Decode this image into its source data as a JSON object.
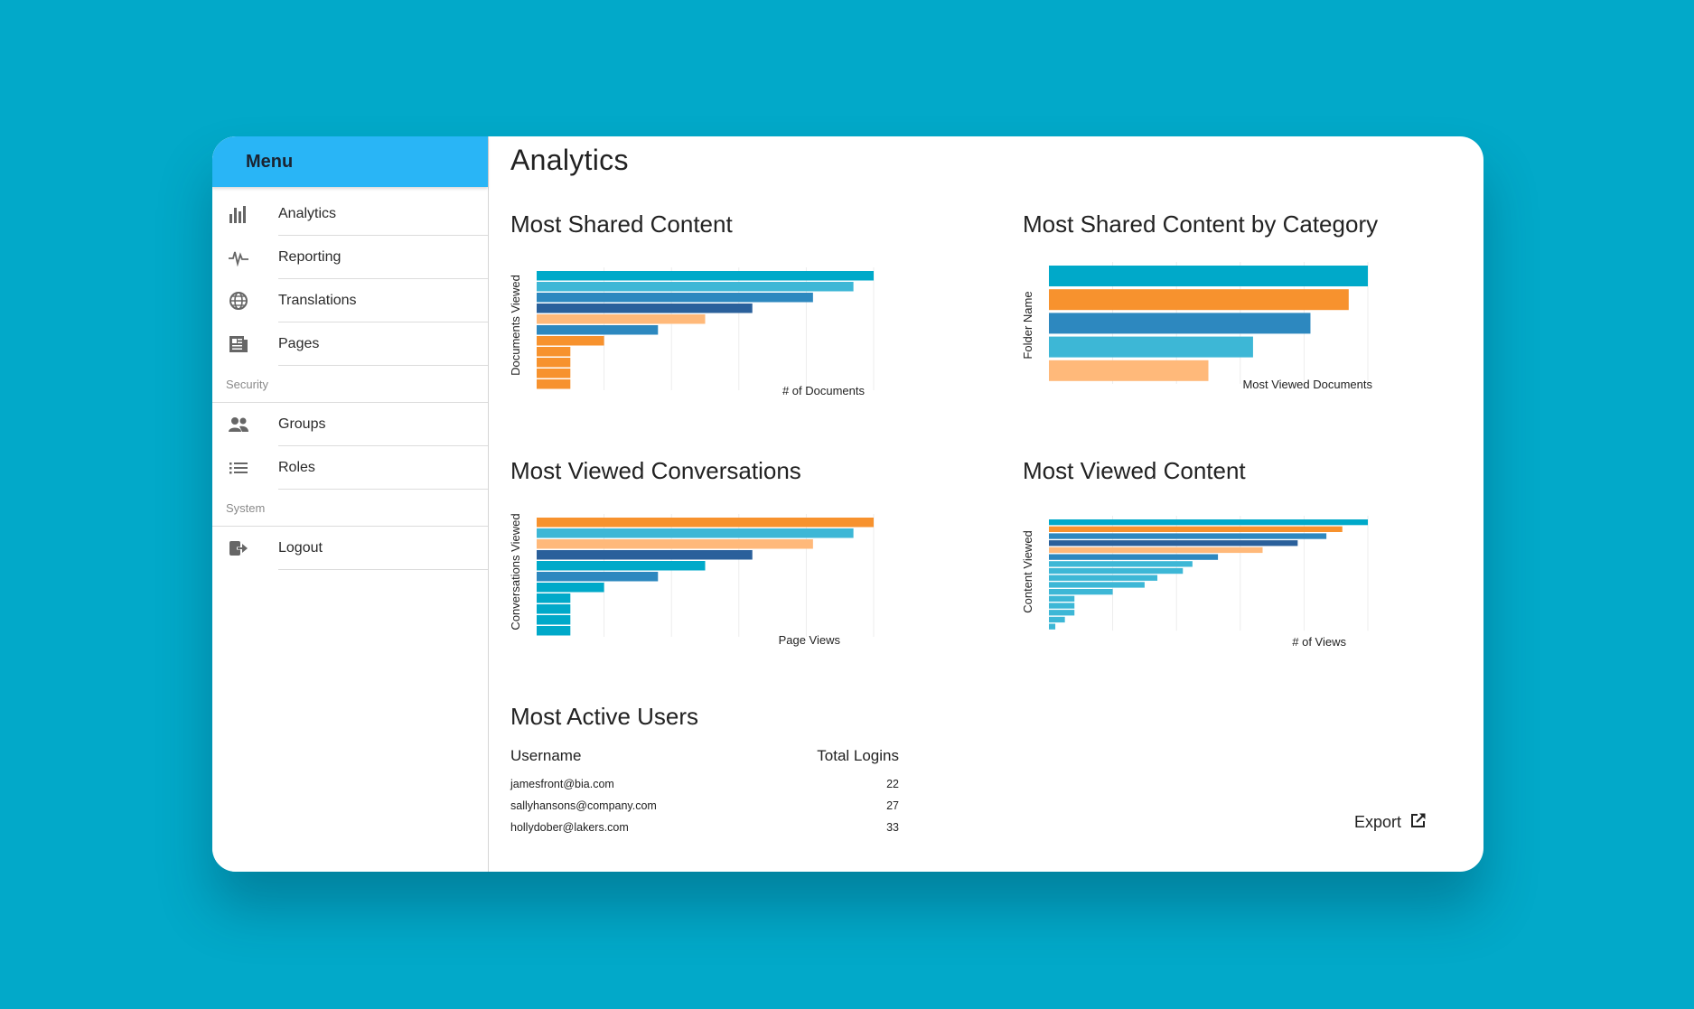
{
  "sidebar": {
    "title": "Menu",
    "items": [
      {
        "label": "Analytics"
      },
      {
        "label": "Reporting"
      },
      {
        "label": "Translations"
      },
      {
        "label": "Pages"
      }
    ],
    "security_label": "Security",
    "security_items": [
      {
        "label": "Groups"
      },
      {
        "label": "Roles"
      }
    ],
    "system_label": "System",
    "system_items": [
      {
        "label": "Logout"
      }
    ]
  },
  "main": {
    "title": "Analytics"
  },
  "colors": {
    "teal": "#00a9c9",
    "sky": "#3db7d6",
    "navy": "#2a609b",
    "mid_blue": "#2d88bf",
    "orange": "#f7922e",
    "peach": "#ffb97a"
  },
  "chart_data": [
    {
      "type": "bar",
      "orientation": "horizontal",
      "title": "Most Shared Content",
      "ylabel": "Documents Viewed",
      "xlabel": "# of Documents",
      "values": [
        100,
        94,
        82,
        64,
        50,
        36,
        20,
        10,
        10,
        10,
        10
      ],
      "colors": [
        "teal",
        "sky",
        "mid_blue",
        "navy",
        "peach",
        "mid_blue",
        "orange",
        "orange",
        "orange",
        "orange",
        "orange"
      ],
      "xlim": [
        0,
        100
      ],
      "grid": true
    },
    {
      "type": "bar",
      "orientation": "horizontal",
      "title": "Most Shared Content by Category",
      "ylabel": "Folder Name",
      "xlabel": "Most Viewed Documents",
      "values": [
        100,
        94,
        82,
        64,
        50
      ],
      "colors": [
        "teal",
        "orange",
        "mid_blue",
        "sky",
        "peach"
      ],
      "xlim": [
        0,
        100
      ],
      "grid": true
    },
    {
      "type": "bar",
      "orientation": "horizontal",
      "title": "Most Viewed Conversations",
      "ylabel": "Conversations Viewed",
      "xlabel": "Page Views",
      "values": [
        100,
        94,
        82,
        64,
        50,
        36,
        20,
        10,
        10,
        10,
        10
      ],
      "colors": [
        "orange",
        "sky",
        "peach",
        "navy",
        "teal",
        "mid_blue",
        "teal",
        "teal",
        "teal",
        "teal",
        "teal"
      ],
      "xlim": [
        0,
        100
      ],
      "grid": true
    },
    {
      "type": "bar",
      "orientation": "horizontal",
      "title": "Most Viewed Content",
      "ylabel": "Content Viewed",
      "xlabel": "# of Views",
      "values": [
        100,
        92,
        87,
        78,
        67,
        53,
        45,
        42,
        34,
        30,
        20,
        8,
        8,
        8,
        5,
        2
      ],
      "colors": [
        "teal",
        "orange",
        "mid_blue",
        "navy",
        "peach",
        "mid_blue",
        "sky",
        "sky",
        "sky",
        "sky",
        "sky",
        "sky",
        "sky",
        "sky",
        "sky",
        "sky"
      ],
      "xlim": [
        0,
        100
      ],
      "grid": true
    }
  ],
  "users": {
    "title": "Most Active Users",
    "col_username": "Username",
    "col_logins": "Total Logins",
    "rows": [
      {
        "username": "jamesfront@bia.com",
        "logins": "22"
      },
      {
        "username": "sallyhansons@company.com",
        "logins": "27"
      },
      {
        "username": "hollydober@lakers.com",
        "logins": "33"
      }
    ]
  },
  "export": {
    "label": "Export"
  }
}
